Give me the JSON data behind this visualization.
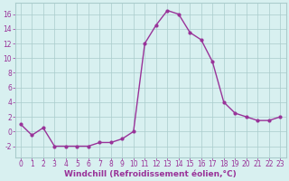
{
  "x": [
    0,
    1,
    2,
    3,
    4,
    5,
    6,
    7,
    8,
    9,
    10,
    11,
    12,
    13,
    14,
    15,
    16,
    17,
    18,
    19,
    20,
    21,
    22,
    23
  ],
  "y": [
    1,
    -0.5,
    0.5,
    -2,
    -2,
    -2,
    -2,
    -1.5,
    -1.5,
    -1,
    0,
    12,
    14.5,
    16.5,
    16,
    13.5,
    12.5,
    9.5,
    4,
    2.5,
    2,
    1.5,
    1.5,
    2
  ],
  "line_color": "#993399",
  "marker": "o",
  "markersize": 2.0,
  "linewidth": 1.0,
  "xlabel": "Windchill (Refroidissement éolien,°C)",
  "xlabel_fontsize": 6.5,
  "xlabel_color": "#993399",
  "ylabel_ticks": [
    -2,
    0,
    2,
    4,
    6,
    8,
    10,
    12,
    14,
    16
  ],
  "ylim": [
    -3.5,
    17.5
  ],
  "xlim": [
    -0.5,
    23.5
  ],
  "bg_color": "#d8f0f0",
  "grid_color": "#aacccc",
  "tick_color": "#993399",
  "tick_fontsize": 5.5
}
